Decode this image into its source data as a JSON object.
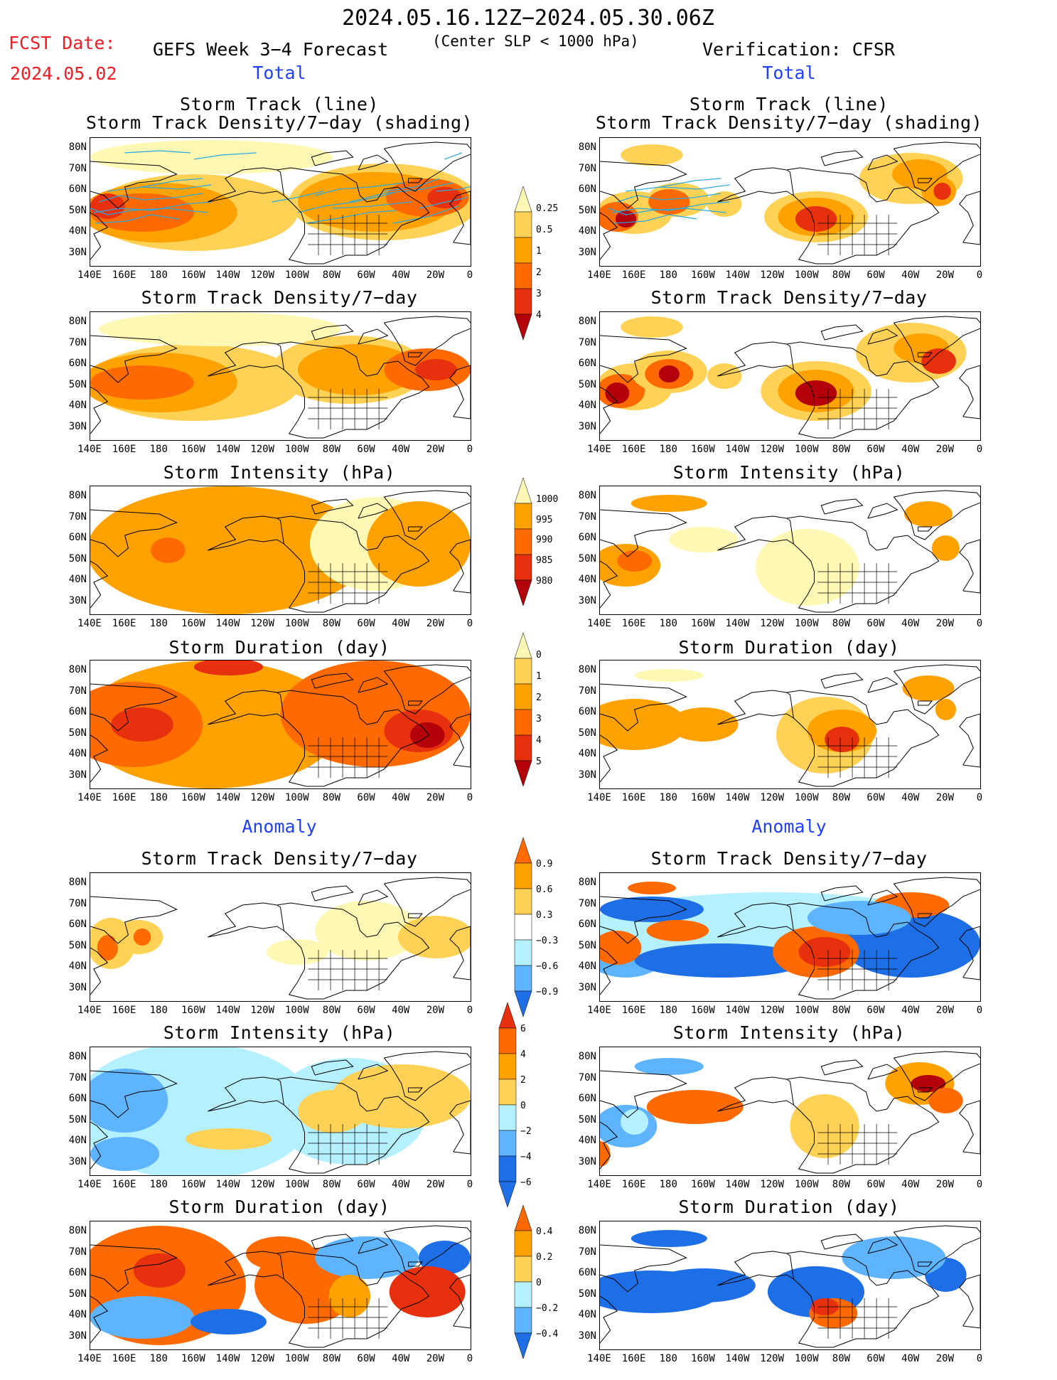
{
  "header": {
    "date_range": "2024.05.16.12Z−2024.05.30.06Z",
    "fcst_label": "FCST Date:",
    "fcst_date": "2024.05.02",
    "forecast_title": "GEFS Week 3−4 Forecast",
    "criterion": "(Center SLP < 1000 hPa)",
    "verification": "Verification: CFSR"
  },
  "sections": {
    "total_left": "Total",
    "total_right": "Total",
    "anomaly_left": "Anomaly",
    "anomaly_right": "Anomaly"
  },
  "panel_titles": {
    "track_line": "Storm Track (line)",
    "track_shading": "Storm Track Density/7−day (shading)",
    "track_density": "Storm Track Density/7−day",
    "intensity": "Storm Intensity (hPa)",
    "duration": "Storm Duration (day)"
  },
  "axes": {
    "x_ticks": [
      "140E",
      "160E",
      "180",
      "160W",
      "140W",
      "120W",
      "100W",
      "80W",
      "60W",
      "40W",
      "20W",
      "0"
    ],
    "y_ticks": [
      "80N",
      "70N",
      "60N",
      "50N",
      "40N",
      "30N"
    ]
  },
  "colorbars": {
    "density_total": [
      "0.25",
      "0.5",
      "1",
      "2",
      "3",
      "4"
    ],
    "intensity_total": [
      "1000",
      "995",
      "990",
      "985",
      "980"
    ],
    "duration_total": [
      "0",
      "1",
      "2",
      "3",
      "4",
      "5"
    ],
    "density_anom": [
      "0.9",
      "0.6",
      "0.3",
      "−0.3",
      "−0.6",
      "−0.9"
    ],
    "intensity_anom": [
      "6",
      "4",
      "2",
      "0",
      "−2",
      "−4",
      "−6"
    ],
    "duration_anom": [
      "0.4",
      "0.2",
      "0",
      "−0.2",
      "−0.4"
    ]
  },
  "colors": {
    "yellow": "#fff8b4",
    "lightorange": "#ffd255",
    "orange": "#ffa200",
    "orangered": "#ff6a00",
    "red": "#e6300e",
    "darkred": "#b4000a",
    "lightblue": "#b4f0ff",
    "medblue": "#5fb4ff",
    "blue": "#1e6ee6",
    "trackline": "#2aa9e0",
    "redtext": "#ee1c25",
    "bluetext": "#1f3fff"
  }
}
